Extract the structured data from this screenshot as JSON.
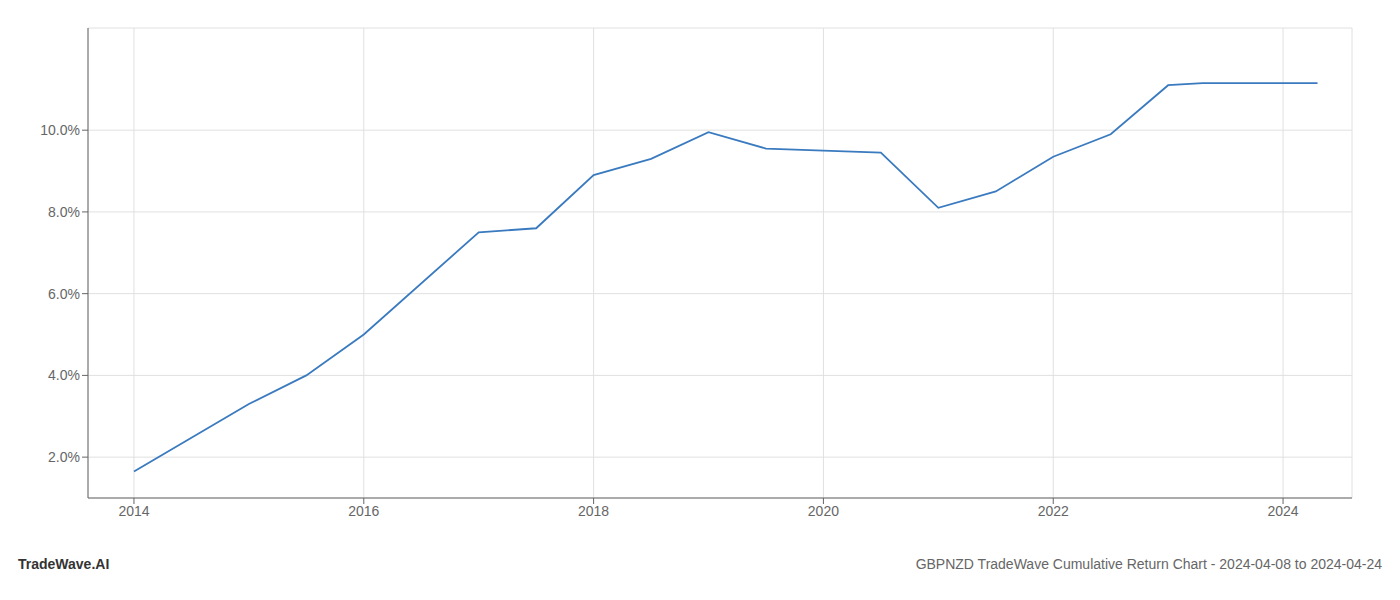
{
  "chart_data": {
    "type": "line",
    "x": [
      2014,
      2015,
      2015.5,
      2016,
      2017,
      2017.5,
      2018,
      2018.5,
      2019,
      2019.5,
      2020,
      2020.5,
      2021,
      2021.5,
      2022,
      2022.5,
      2023,
      2023.3,
      2024,
      2024.3
    ],
    "values": [
      1.65,
      3.3,
      4.0,
      5.0,
      7.5,
      7.6,
      8.9,
      9.3,
      9.95,
      9.55,
      9.5,
      9.45,
      8.1,
      8.5,
      9.35,
      9.9,
      11.1,
      11.15,
      11.15,
      11.15
    ],
    "color": "#3a7abf",
    "xlim": [
      2013.6,
      2024.6
    ],
    "ylim": [
      1.0,
      12.5
    ],
    "xticks": [
      2014,
      2016,
      2018,
      2020,
      2022,
      2024
    ],
    "yticks": [
      {
        "value": 2.0,
        "label": "2.0%"
      },
      {
        "value": 4.0,
        "label": "4.0%"
      },
      {
        "value": 6.0,
        "label": "6.0%"
      },
      {
        "value": 8.0,
        "label": "8.0%"
      },
      {
        "value": 10.0,
        "label": "10.0%"
      }
    ],
    "grid": true,
    "annotations": [
      "TradeWave.AI",
      "GBPNZD TradeWave Cumulative Return Chart - 2024-04-08 to 2024-04-24"
    ]
  }
}
